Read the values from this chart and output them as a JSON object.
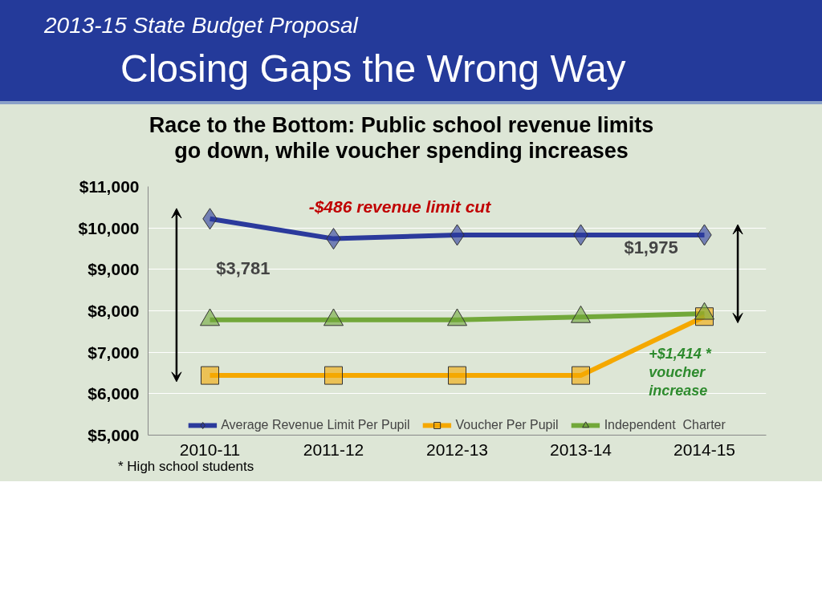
{
  "chart_data": {
    "type": "line",
    "title": "Closing Gaps the Wrong Way",
    "subtitle": "2013-15 State Budget Proposal",
    "categories": [
      "2010-11",
      "2011-12",
      "2012-13",
      "2013-14",
      "2014-15"
    ],
    "series": [
      {
        "name": "Average Revenue Limit Per Pupil",
        "color": "#2b3a9c",
        "marker": "diamond",
        "values": [
          10220,
          9740,
          9830,
          9830,
          9830
        ]
      },
      {
        "name": "Voucher Per Pupil",
        "color": "#f5a800",
        "marker": "square",
        "values": [
          6440,
          6440,
          6440,
          6440,
          7860
        ]
      },
      {
        "name": "Independent  Charter",
        "color": "#72a83a",
        "marker": "triangle",
        "values": [
          7780,
          7780,
          7780,
          7850,
          7930
        ]
      }
    ],
    "ylim": [
      5000,
      11000
    ],
    "yticks": [
      {
        "value": 5000,
        "label": "$5,000"
      },
      {
        "value": 6000,
        "label": "$6,000"
      },
      {
        "value": 7000,
        "label": "$7,000"
      },
      {
        "value": 8000,
        "label": "$8,000"
      },
      {
        "value": 9000,
        "label": "$9,000"
      },
      {
        "value": 10000,
        "label": "$10,000"
      },
      {
        "value": 11000,
        "label": "$11,000"
      }
    ],
    "grid": "y",
    "legend": "bottom",
    "line_style": "solid",
    "annotations": [
      "Race to the Bottom: Public school revenue limits go down, while voucher spending increases",
      "-$486 revenue limit  cut",
      "$3,781",
      "$1,975",
      "+$1,414 * voucher increase",
      "* High school students"
    ]
  }
}
